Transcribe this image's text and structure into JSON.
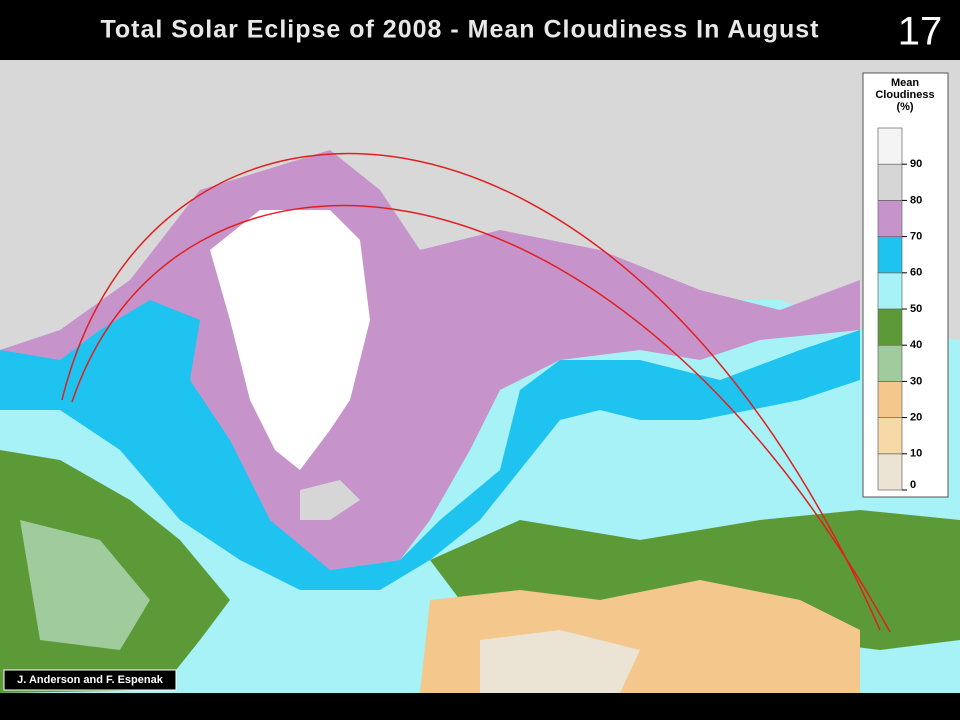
{
  "header": {
    "title": "Total Solar Eclipse of 2008 - Mean Cloudiness In August",
    "slide_number": "17"
  },
  "legend": {
    "title_lines": [
      "Mean",
      "Cloudiness",
      "(%)"
    ],
    "ticks": [
      0,
      10,
      20,
      30,
      40,
      50,
      60,
      70,
      80,
      90
    ],
    "colors": [
      "#ebe3d3",
      "#f6d9a6",
      "#f4c88c",
      "#9fcb9d",
      "#5c9a38",
      "#a6f2f6",
      "#1fc3ef",
      "#c694cb",
      "#d6d6d6",
      "#f4f4f4"
    ]
  },
  "credit": "J. Anderson and F. Espenak"
}
